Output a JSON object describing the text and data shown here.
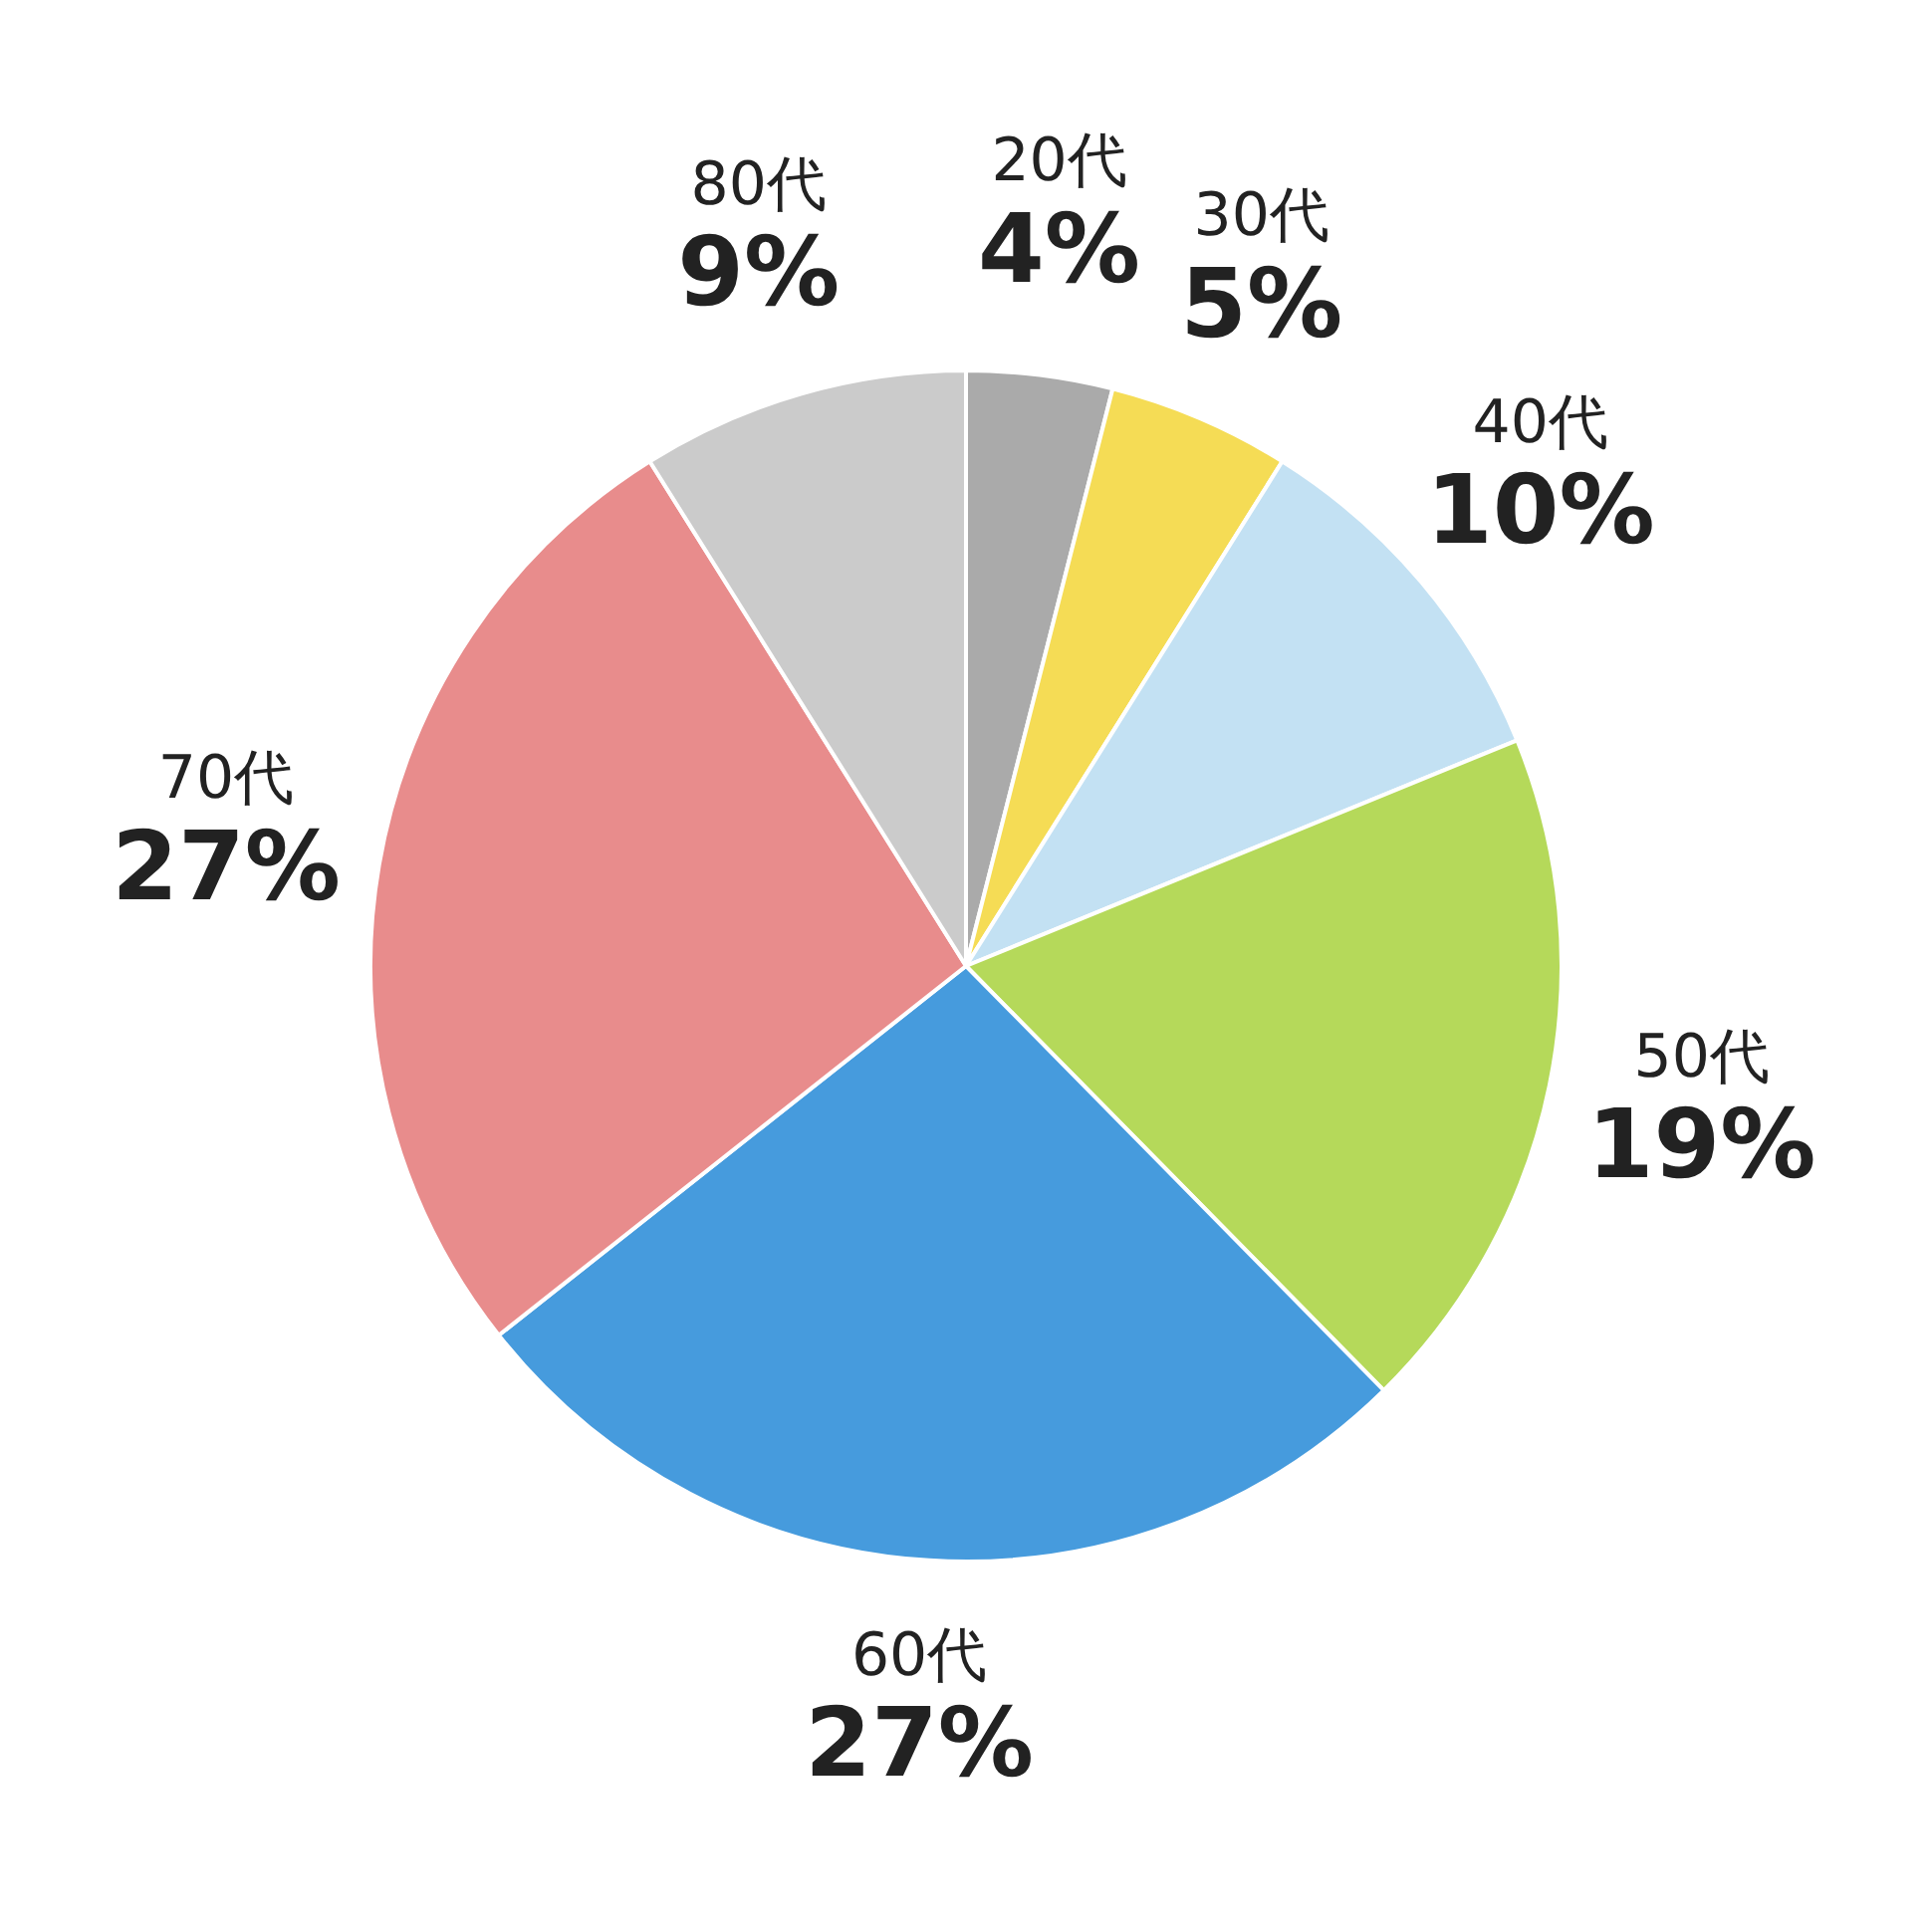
{
  "chart_data": {
    "type": "pie",
    "categories": [
      "20代",
      "30代",
      "40代",
      "50代",
      "60代",
      "70代",
      "80代"
    ],
    "values": [
      4,
      5,
      10,
      19,
      27,
      27,
      9
    ],
    "value_labels": [
      "4%",
      "5%",
      "10%",
      "19%",
      "27%",
      "27%",
      "9%"
    ],
    "colors": [
      "#aaaaaa",
      "#f5dc55",
      "#c3e1f3",
      "#b5d95a",
      "#469bdd",
      "#e88c8c",
      "#cbcbcb"
    ],
    "legend": false
  }
}
